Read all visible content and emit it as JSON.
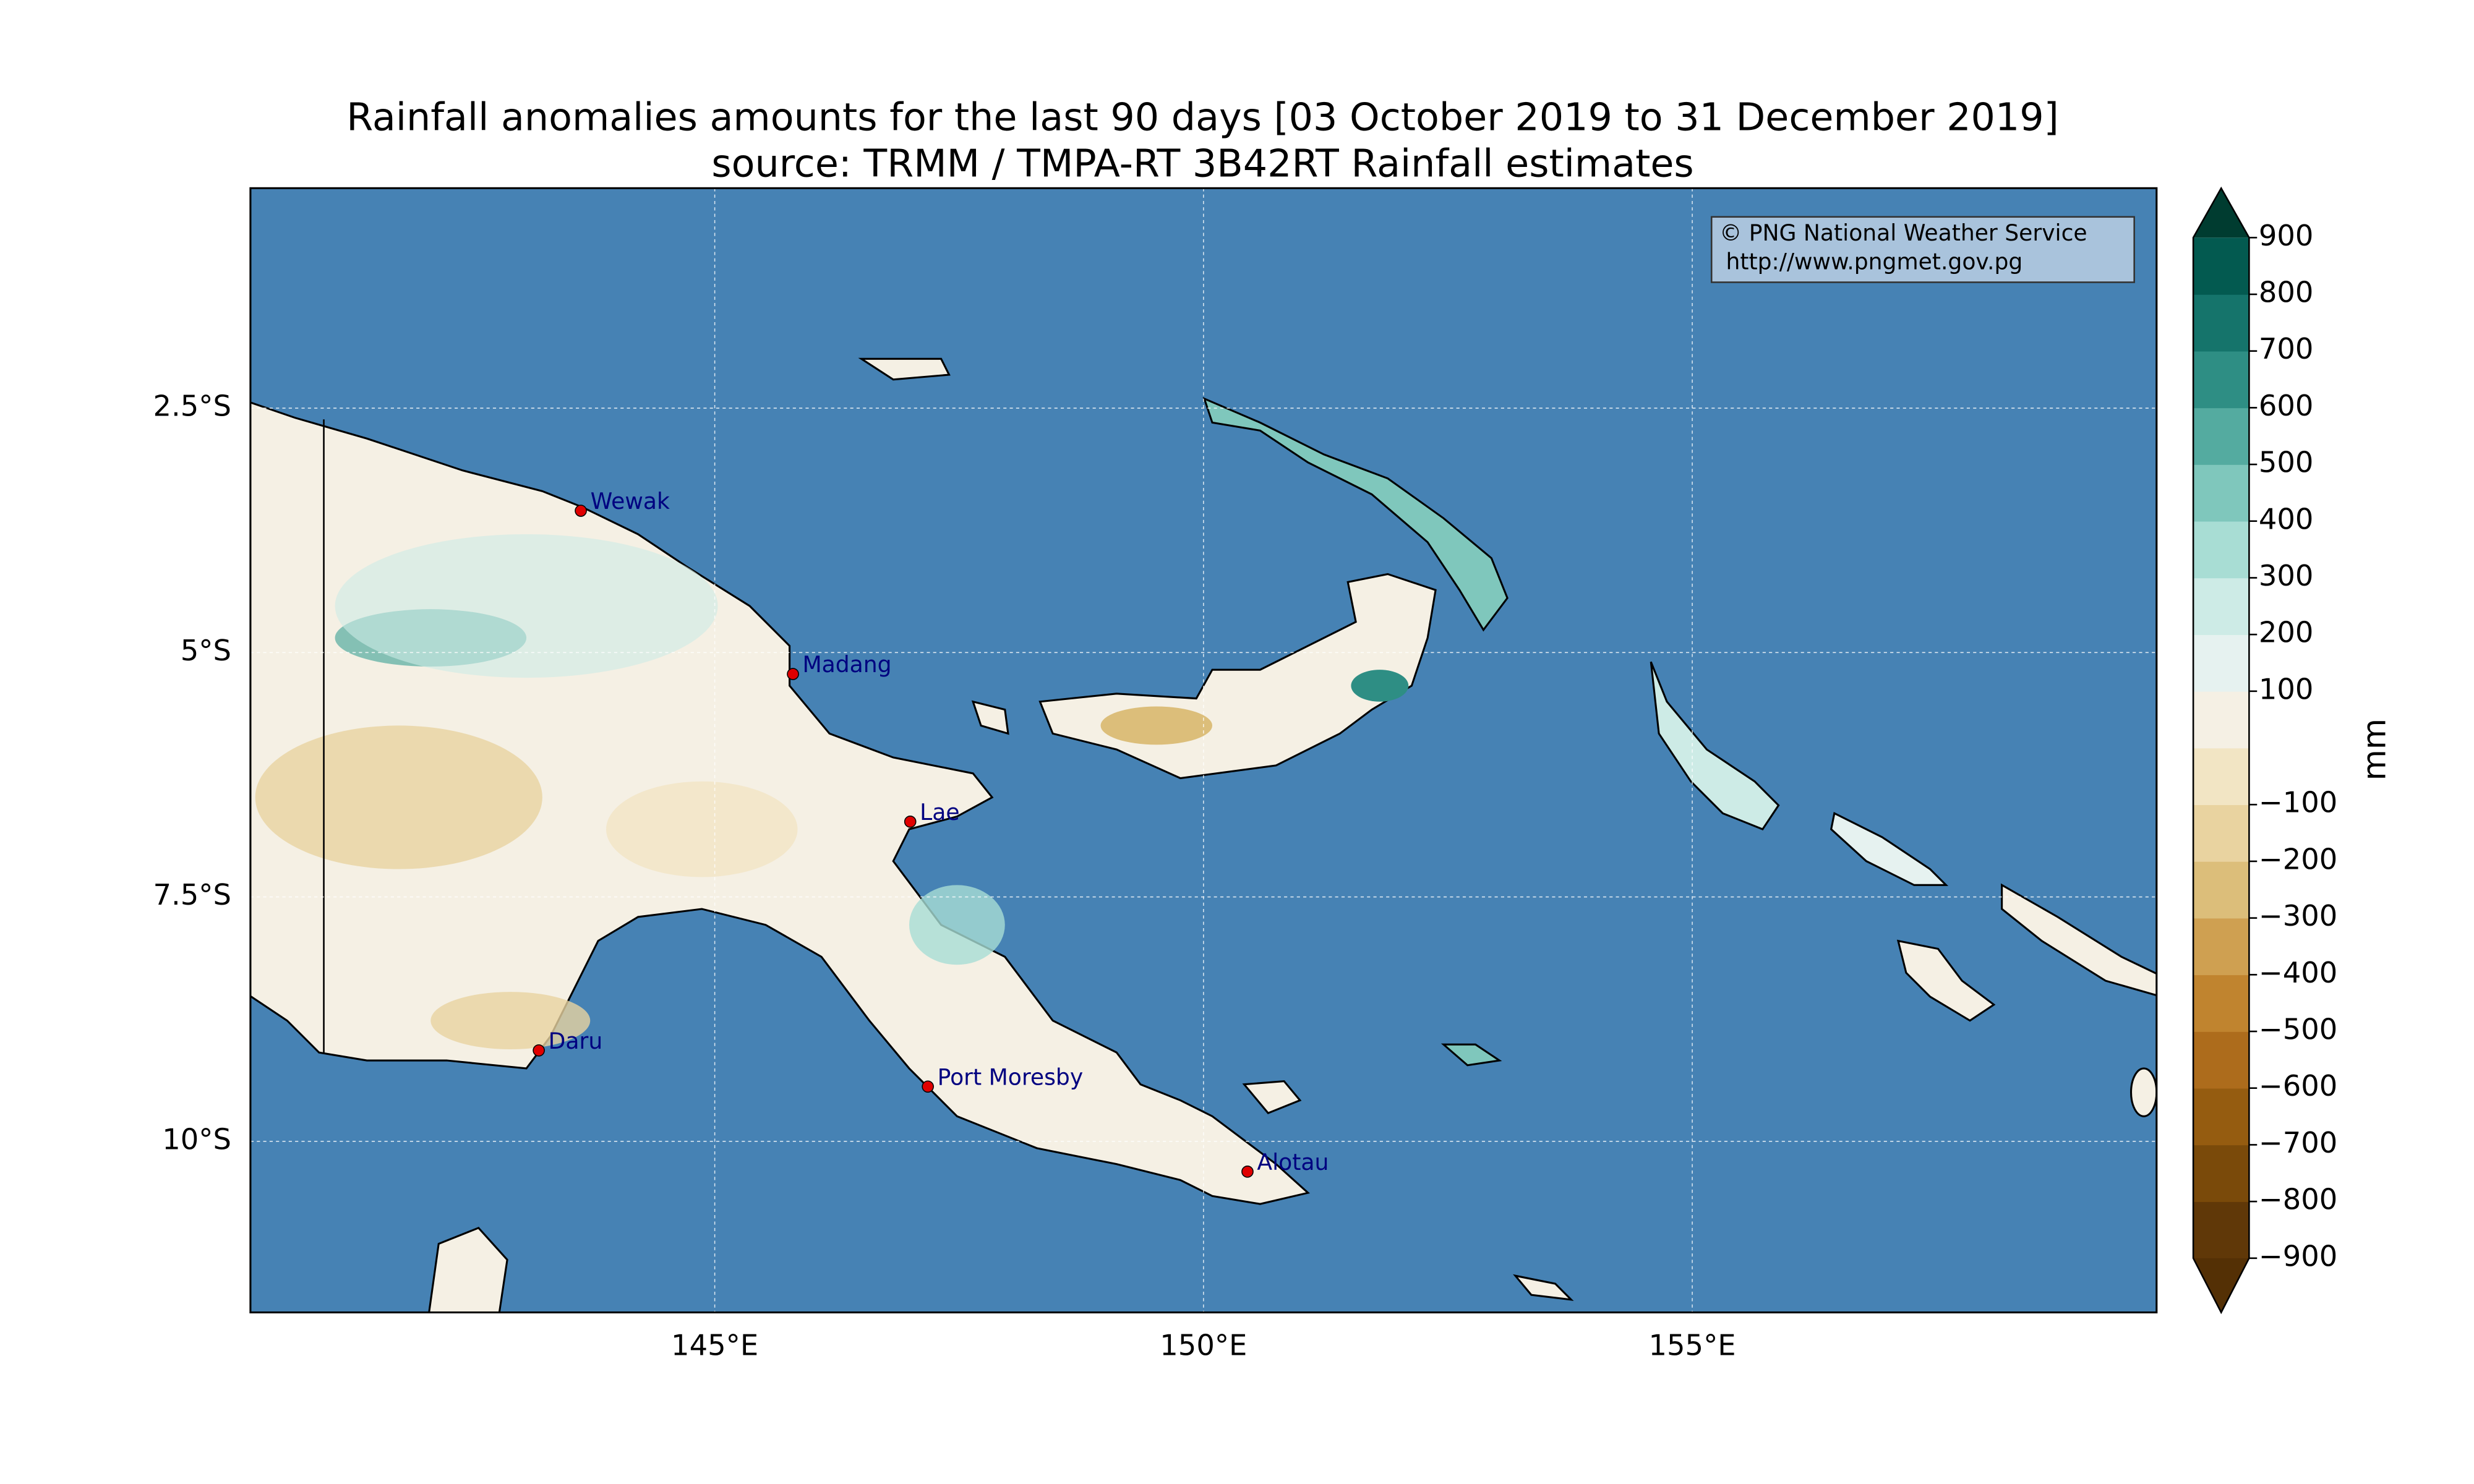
{
  "header": {
    "title": "Rainfall anomalies amounts for the last 90 days [03 October 2019 to 31 December 2019]",
    "subtitle": "source: TRMM / TMPA-RT 3B42RT Rainfall estimates"
  },
  "map": {
    "xlim": [
      140.25,
      159.75
    ],
    "ylim": [
      -11.75,
      -0.25
    ],
    "xticks": [
      {
        "value": 145,
        "label": "145°E"
      },
      {
        "value": 150,
        "label": "150°E"
      },
      {
        "value": 155,
        "label": "155°E"
      }
    ],
    "yticks": [
      {
        "value": -2.5,
        "label": "2.5°S"
      },
      {
        "value": -5,
        "label": "5°S"
      },
      {
        "value": -7.5,
        "label": "7.5°S"
      },
      {
        "value": -10,
        "label": "10°S"
      }
    ],
    "grid": true,
    "ocean_color": "#4682b4",
    "land_color": "#f5f0e4",
    "city_color": "#e00000",
    "city_label_color": "#000080",
    "cities": [
      {
        "name": "Wewak",
        "lon": 143.63,
        "lat": -3.55
      },
      {
        "name": "Madang",
        "lon": 145.8,
        "lat": -5.22
      },
      {
        "name": "Lae",
        "lon": 147.0,
        "lat": -6.73
      },
      {
        "name": "Daru",
        "lon": 143.2,
        "lat": -9.07
      },
      {
        "name": "Port Moresby",
        "lon": 147.18,
        "lat": -9.44
      },
      {
        "name": "Alotau",
        "lon": 150.45,
        "lat": -10.31
      }
    ],
    "credit": [
      "© PNG National Weather Service",
      "http://www.pngmet.gov.pg"
    ]
  },
  "colorbar": {
    "label": "mm",
    "lim": [
      -900,
      900
    ],
    "ticks": [
      900,
      800,
      700,
      600,
      500,
      400,
      300,
      200,
      100,
      {
        "value": -100,
        "label": "−100"
      },
      {
        "value": -200,
        "label": "−200"
      },
      {
        "value": -300,
        "label": "−300"
      },
      {
        "value": -400,
        "label": "−400"
      },
      {
        "value": -500,
        "label": "−500"
      },
      {
        "value": -600,
        "label": "−600"
      },
      {
        "value": -700,
        "label": "−700"
      },
      {
        "value": -800,
        "label": "−800"
      },
      {
        "value": -900,
        "label": "−900"
      }
    ],
    "colors": [
      "#603808",
      "#7a4a0a",
      "#955c10",
      "#ad6c1c",
      "#c0842f",
      "#cfa051",
      "#dcbe7a",
      "#e9d3a0",
      "#f2e5c4",
      "#f5f0e4",
      "#e6f2f0",
      "#cdebe6",
      "#a8ddd4",
      "#7fc7bc",
      "#54aba0",
      "#2e8e84",
      "#15746b",
      "#035a50"
    ],
    "under_color": "#543005",
    "over_color": "#003c30"
  }
}
